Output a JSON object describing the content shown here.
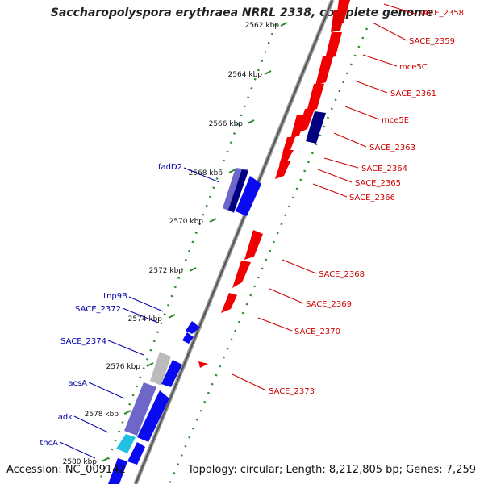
{
  "title": "Saccharopolyspora erythraea NRRL 2338, complete genome",
  "footer": {
    "accession": "Accession: NC_009142",
    "topology": "Topology: circular; Length: 8,212,805 bp; Genes: 7,259"
  },
  "colors": {
    "forward_gene": "#0a0af0",
    "reverse_gene": "#f00000",
    "forward_label": "#0000aa",
    "reverse_label": "#cc0000",
    "backbone": "#888888",
    "tick": "#2a8a2a",
    "forward_rrna": "#6e66c8",
    "dark_gene": "#000080",
    "cyan_gene": "#20c0e0",
    "grey_gene": "#bbbbbb"
  },
  "scale_labels": [
    "2562 kbp",
    "2564 kbp",
    "2566 kbp",
    "2568 kbp",
    "2570 kbp",
    "2572 kbp",
    "2574 kbp",
    "2576 kbp",
    "2578 kbp",
    "2580 kbp"
  ],
  "forward_labels": [
    "fadD2",
    "tnp9B",
    "SACE_2372",
    "SACE_2374",
    "acsA",
    "adk",
    "thcA"
  ],
  "reverse_labels": [
    "SACE_2358",
    "SACE_2359",
    "mce5C",
    "SACE_2361",
    "mce5E",
    "SACE_2363",
    "SACE_2364",
    "SACE_2365",
    "SACE_2366",
    "SACE_2368",
    "SACE_2369",
    "SACE_2370",
    "SACE_2373"
  ]
}
